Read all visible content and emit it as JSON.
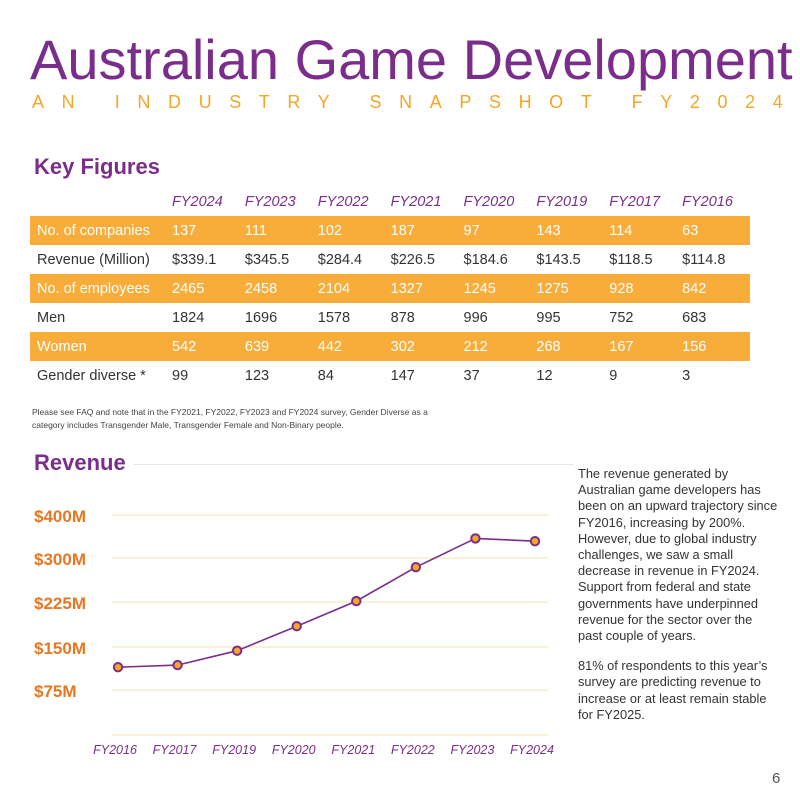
{
  "header": {
    "title": "Australian Game Development",
    "subtitle": "AN INDUSTRY SNAPSHOT FY2024"
  },
  "key_figures": {
    "heading": "Key Figures",
    "columns": [
      "FY2024",
      "FY2023",
      "FY2022",
      "FY2021",
      "FY2020",
      "FY2019",
      "FY2017",
      "FY2016"
    ],
    "rows": [
      {
        "label": "No. of companies",
        "values": [
          "137",
          "111",
          "102",
          "187",
          "97",
          "143",
          "114",
          "63"
        ]
      },
      {
        "label": "Revenue (Million)",
        "values": [
          "$339.1",
          "$345.5",
          "$284.4",
          "$226.5",
          "$184.6",
          "$143.5",
          "$118.5",
          "$114.8"
        ]
      },
      {
        "label": "No. of employees",
        "values": [
          "2465",
          "2458",
          "2104",
          "1327",
          "1245",
          "1275",
          "928",
          "842"
        ]
      },
      {
        "label": "Men",
        "values": [
          "1824",
          "1696",
          "1578",
          "878",
          "996",
          "995",
          "752",
          "683"
        ]
      },
      {
        "label": "Women",
        "values": [
          "542",
          "639",
          "442",
          "302",
          "212",
          "268",
          "167",
          "156"
        ]
      },
      {
        "label": "Gender diverse *",
        "values": [
          "99",
          "123",
          "84",
          "147",
          "37",
          "12",
          "9",
          "3"
        ]
      }
    ],
    "footnote": "Please see FAQ and note that in the FY2021, FY2022, FY2023 and FY2024 survey, Gender Diverse as a category includes Transgender Male, Transgender Female and Non-Binary people."
  },
  "revenue": {
    "heading": "Revenue",
    "paragraphs": [
      "The revenue generated by Australian game developers has been on an upward trajectory since FY2016, increasing by 200%.  However, due to global industry challenges, we saw a small decrease in revenue in FY2024. Support from federal and state governments have underpinned revenue for the sector over the past couple of years.",
      "81% of respondents to this year’s survey are predicting revenue to increase or at least remain stable for FY2025."
    ]
  },
  "chart_data": {
    "type": "line",
    "categories": [
      "FY2016",
      "FY2017",
      "FY2019",
      "FY2020",
      "FY2021",
      "FY2022",
      "FY2023",
      "FY2024"
    ],
    "values": [
      114.8,
      118.5,
      143.5,
      184.6,
      226.5,
      284.4,
      345.5,
      339.1
    ],
    "y_ticks": [
      {
        "value": 75,
        "label": "$75M"
      },
      {
        "value": 150,
        "label": "$150M"
      },
      {
        "value": 225,
        "label": "$225M"
      },
      {
        "value": 300,
        "label": "$300M"
      },
      {
        "value": 400,
        "label": "$400M"
      }
    ],
    "ylim": [
      0,
      400
    ],
    "grid": true,
    "colors": {
      "line": "#7b2d8b",
      "marker_fill": "#f5a623",
      "marker_stroke": "#7b2d8b",
      "grid": "#f7e2a8",
      "tick": "#e87722",
      "category": "#7b2d8b"
    }
  },
  "page_number": "6",
  "colors": {
    "brand_purple": "#7b2d8b",
    "accent_orange": "#f5a623",
    "row_highlight": "#f8ac3a"
  }
}
